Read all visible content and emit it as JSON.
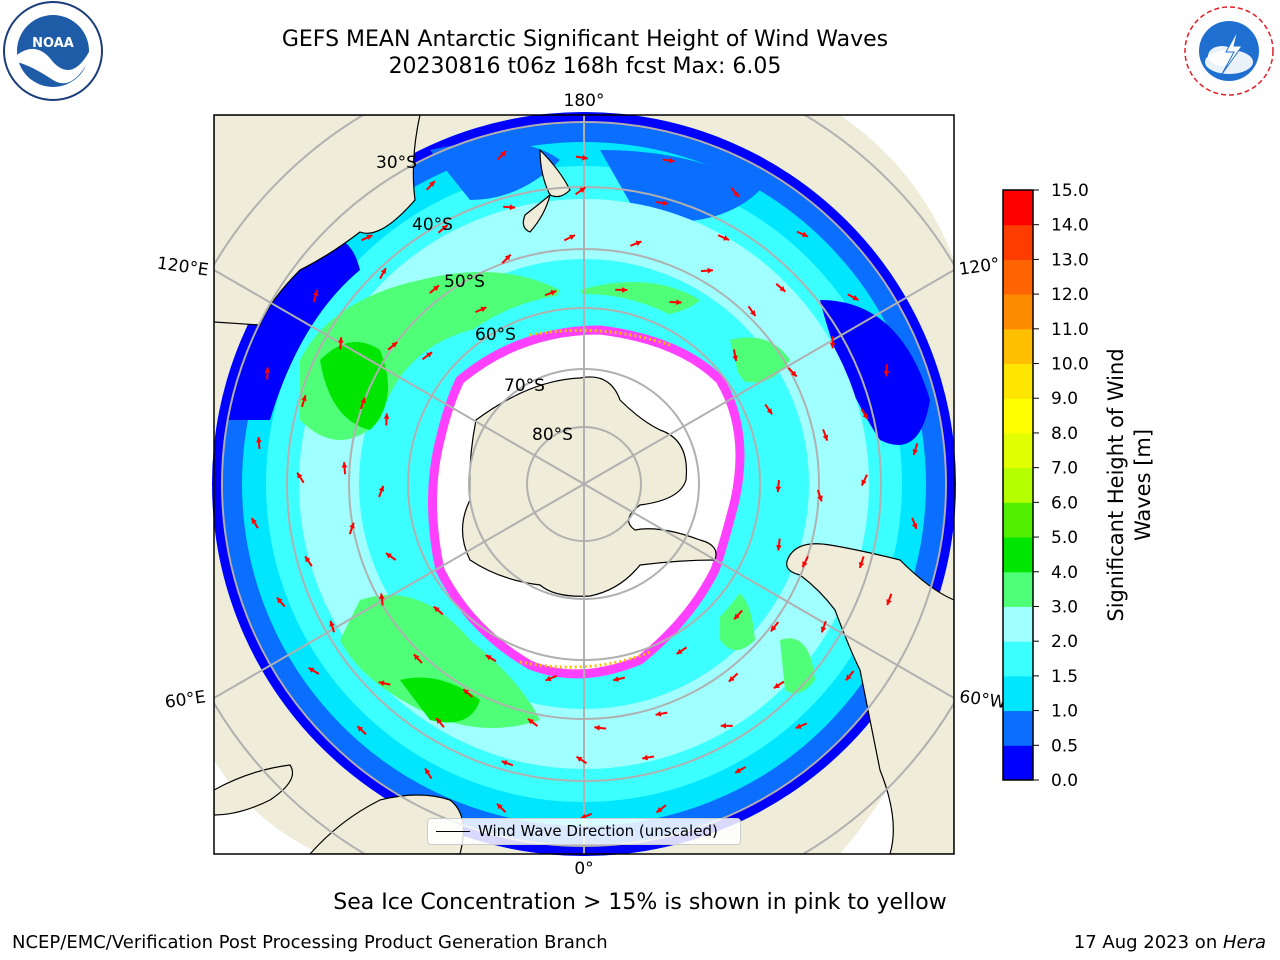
{
  "title": {
    "line1": "GEFS MEAN Antarctic Significant Height of Wind Waves",
    "line2": "20230816 t06z 168h fcst   Max: 6.05"
  },
  "logos": {
    "left": "NOAA",
    "right": "NATIONAL WEATHER SERVICE"
  },
  "map": {
    "projection": "south-polar-stereographic",
    "longitude_labels": [
      "180°",
      "120°E",
      "120°",
      "60°E",
      "60°W",
      "0°"
    ],
    "latitude_labels": [
      "30°S",
      "40°S",
      "50°S",
      "60°S",
      "70°S",
      "80°S"
    ],
    "legend_label": "Wind Wave Direction (unscaled)",
    "colors": {
      "land": "#efedd9",
      "ice_free": "#ffffff",
      "graticule": "#b0b0b0",
      "arrow": "#ff0000",
      "sea_ice": "#ff40ff"
    }
  },
  "colorbar": {
    "label_line1": "Significant Height of Wind",
    "label_line2": "Waves [m]",
    "ticks": [
      "0.0",
      "0.5",
      "1.0",
      "1.5",
      "2.0",
      "3.0",
      "4.0",
      "5.0",
      "6.0",
      "7.0",
      "8.0",
      "9.0",
      "10.0",
      "11.0",
      "12.0",
      "13.0",
      "14.0",
      "15.0"
    ],
    "colors": [
      "#0000ff",
      "#0a6eff",
      "#00e6ff",
      "#3cffff",
      "#a0ffff",
      "#50ff78",
      "#00e600",
      "#50f000",
      "#b4ff00",
      "#e1ff00",
      "#ffff00",
      "#ffe600",
      "#ffbe00",
      "#ff8c00",
      "#ff6400",
      "#ff3c00",
      "#ff0000"
    ]
  },
  "caption": "Sea Ice Concentration > 15% is shown in pink to yellow",
  "footer": {
    "left": "NCEP/EMC/Verification Post Processing Product Generation Branch",
    "right_prefix": "17 Aug 2023 on ",
    "right_machine": "Hera"
  }
}
